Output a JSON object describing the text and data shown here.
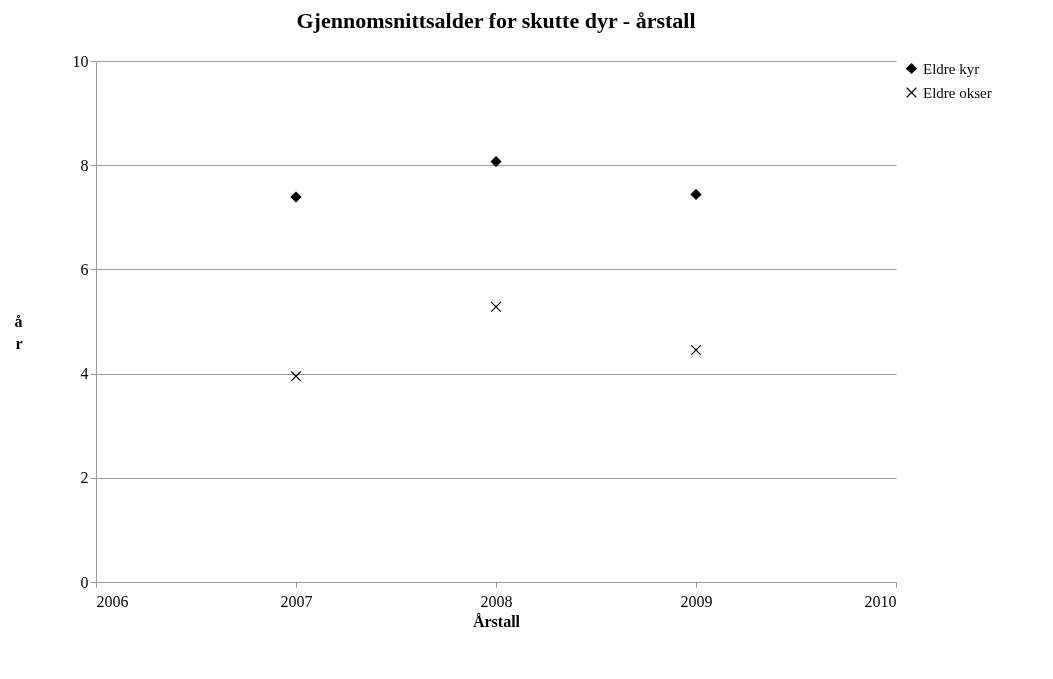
{
  "chart_data": {
    "type": "scatter",
    "title": "Gjennomsnittsalder for skutte dyr - årstall",
    "xlabel": "Årstall",
    "ylabel": "år",
    "x": [
      2007,
      2008,
      2009
    ],
    "series": [
      {
        "name": "Eldre kyr",
        "color": "#000000",
        "marker": "diamond",
        "values": [
          7.39,
          8.07,
          7.44
        ]
      },
      {
        "name": "Eldre okser",
        "color": "#000000",
        "marker": "cross",
        "values": [
          3.95,
          5.28,
          4.45
        ]
      }
    ],
    "xlim": [
      2006,
      2010
    ],
    "xticks": [
      2006,
      2007,
      2008,
      2009,
      2010
    ],
    "ylim": [
      0,
      10
    ],
    "yticks": [
      0,
      2,
      4,
      6,
      8,
      10
    ],
    "grid": "y",
    "legend": "right"
  }
}
